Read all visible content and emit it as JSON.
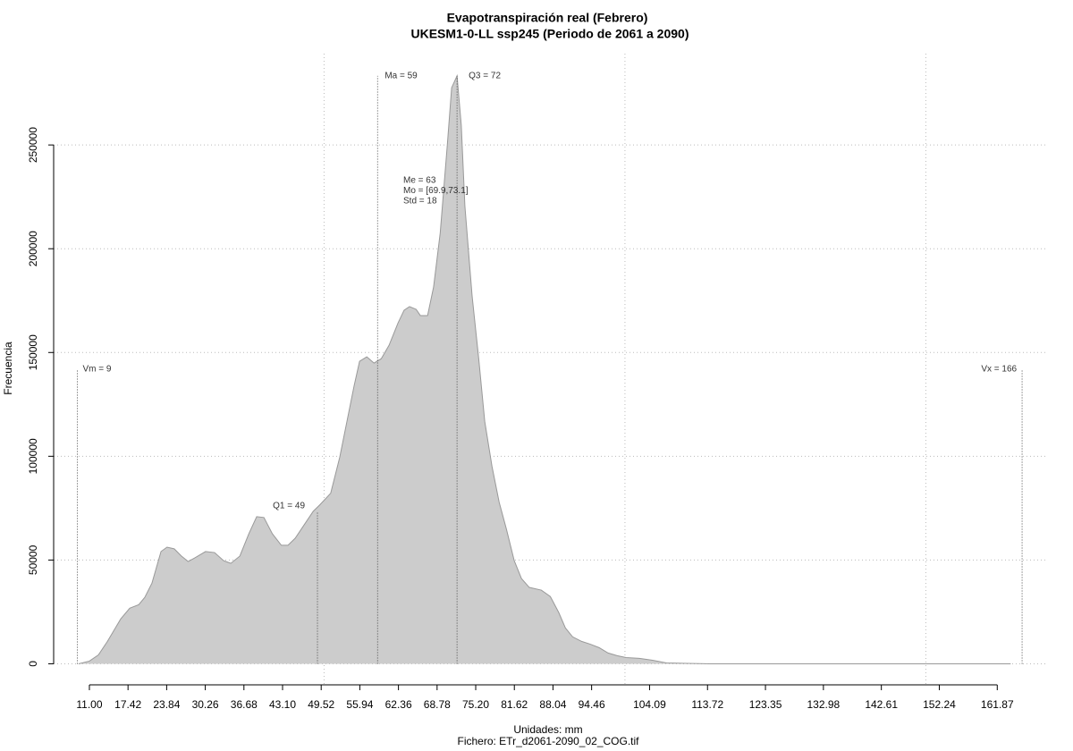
{
  "chart_data": {
    "type": "area",
    "title": "Evapotranspiración real (Febrero)",
    "subtitle": "UKESM1-0-LL ssp245 (Periodo de 2061 a 2090)",
    "x_label": "Unidades: mm",
    "caption": "Fichero: ETr_d2061-2090_02_COG.tif",
    "y_label": "Frecuencia",
    "color": "#cccccc",
    "line_color": "#999999",
    "x": [
      9.2,
      11,
      12.5,
      14.0,
      16.2,
      17.7,
      19.2,
      20.2,
      21.4,
      22.9,
      23.9,
      25.1,
      26.3,
      27.4,
      28.5,
      30.3,
      31.8,
      33.3,
      34.5,
      36.0,
      37.5,
      38.8,
      40.0,
      41.4,
      42.9,
      44.0,
      45.2,
      46.7,
      48.2,
      49.3,
      51.1,
      52.6,
      53.8,
      55.0,
      55.9,
      57.1,
      58.3,
      59.5,
      60.8,
      62.3,
      63.3,
      64.2,
      65.3,
      66.0,
      67.2,
      68.2,
      69.3,
      70.5,
      71.2,
      72.1,
      72.8,
      73.4,
      74.6,
      75.7,
      76.7,
      77.9,
      79.1,
      80.3,
      81.6,
      82.8,
      84.1,
      86.1,
      87.6,
      89.0,
      90.1,
      91.3,
      92.8,
      94.2,
      95.7,
      97.2,
      98.7,
      100.2,
      102.4,
      104.6,
      106.9,
      114.3,
      164.1
    ],
    "values": [
      0,
      1300,
      4300,
      10800,
      21600,
      26800,
      28500,
      32000,
      38900,
      54100,
      56200,
      55400,
      51900,
      49300,
      51000,
      54100,
      53600,
      49700,
      48400,
      51900,
      62700,
      70900,
      70500,
      62700,
      57100,
      57100,
      60500,
      67000,
      73500,
      76600,
      82200,
      99500,
      116800,
      134100,
      145800,
      147900,
      144900,
      147000,
      153500,
      164300,
      170400,
      172100,
      170800,
      167800,
      167800,
      181600,
      207600,
      250800,
      277600,
      283300,
      259500,
      220600,
      177300,
      147000,
      116800,
      95200,
      77800,
      64900,
      49700,
      41100,
      36800,
      35500,
      32400,
      24700,
      17300,
      13000,
      10800,
      9500,
      7800,
      5200,
      3900,
      3000,
      2600,
      1700,
      400,
      0,
      0
    ],
    "xlim": [
      5.06,
      170
    ],
    "ylim": [
      -11000,
      294000
    ],
    "xticks": [
      {
        "value": 11,
        "label": "11.00"
      },
      17.42,
      23.84,
      30.26,
      36.68,
      {
        "value": 43.1,
        "label": "43.10"
      },
      49.52,
      55.94,
      62.36,
      68.78,
      {
        "value": 75.2,
        "label": "75.20"
      },
      81.62,
      88.04,
      94.46,
      104.09,
      113.72,
      123.35,
      132.98,
      142.61,
      152.24,
      161.87
    ],
    "yticks": [
      0,
      50000,
      100000,
      150000,
      200000,
      250000
    ],
    "xgrid": [
      50,
      100,
      150
    ],
    "grid": true,
    "annotations": [
      {
        "x": 9,
        "y": 142000,
        "label": "Vm = 9"
      },
      {
        "x": 48.9,
        "y": 73500,
        "label": "Q1 = 49"
      },
      {
        "x": 58.9,
        "y": 283300,
        "label": "Ma = 59"
      },
      {
        "x": 72.1,
        "y": 283300,
        "label": "Q3 = 72"
      },
      {
        "x": 166,
        "y": 142000,
        "label": "Vx = 166"
      }
    ],
    "stats": [
      "Me = 63",
      "Mo = [69.9,73.1]",
      "Std = 18"
    ]
  }
}
